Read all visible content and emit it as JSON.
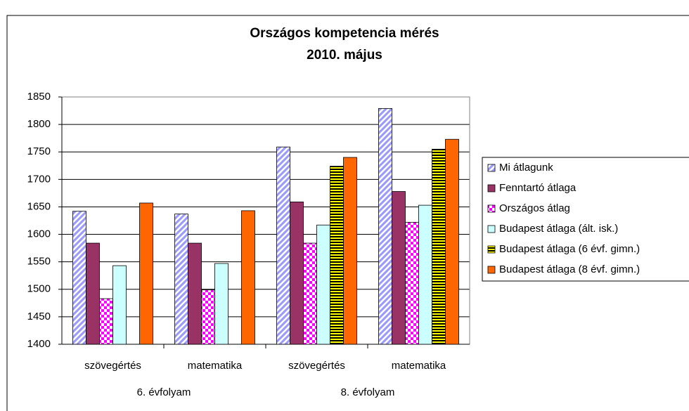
{
  "chart_data": {
    "type": "bar",
    "title": "Országos kompetencia mérés",
    "subtitle": "2010. május",
    "categories": [
      "szövegértés",
      "matematika",
      "szövegértés",
      "matematika"
    ],
    "group_labels": [
      "6. évfolyam",
      "8. évfolyam"
    ],
    "series": [
      {
        "name": "Mi átlagunk",
        "color": "#9999ff",
        "values": [
          1642,
          1637,
          1759,
          1829
        ]
      },
      {
        "name": "Fenntartó átlaga",
        "color": "#993366",
        "values": [
          1584,
          1584,
          1659,
          1678
        ]
      },
      {
        "name": "Országos átlag",
        "color": "#ff00ff",
        "values": [
          1483,
          1499,
          1584,
          1622
        ]
      },
      {
        "name": "Budapest átlaga (ált. isk.)",
        "color": "#ccffff",
        "values": [
          1543,
          1547,
          1617,
          1653
        ]
      },
      {
        "name": "Budapest átlaga (6 évf. gimn.)",
        "color": "#ffff00",
        "values": [
          null,
          null,
          1724,
          1755
        ]
      },
      {
        "name": "Budapest átlaga (8 évf. gimn.)",
        "color": "#ff6600",
        "values": [
          1657,
          1643,
          1740,
          1773
        ]
      }
    ],
    "ylim": [
      1400,
      1850
    ],
    "yticks": [
      1400,
      1450,
      1500,
      1550,
      1600,
      1650,
      1700,
      1750,
      1800,
      1850
    ],
    "grid": true,
    "legend": "right"
  }
}
